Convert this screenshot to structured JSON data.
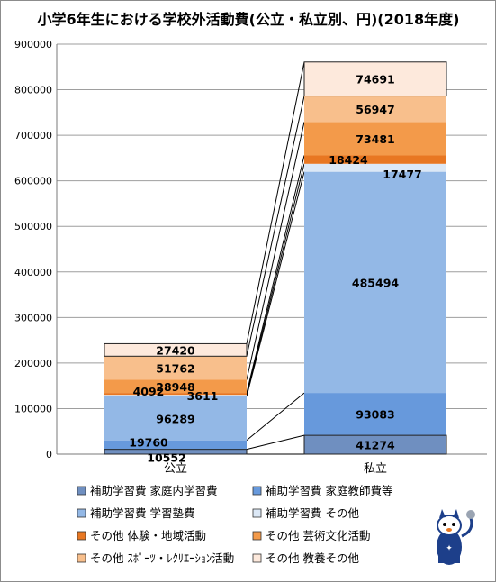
{
  "chart_data": {
    "type": "bar",
    "stacked": true,
    "title": "小学6年生における学校外活動費(公立・私立別、円)(2018年度)",
    "categories": [
      "公立",
      "私立"
    ],
    "ylim": [
      0,
      900000
    ],
    "yticks": [
      "0",
      "100000",
      "200000",
      "300000",
      "400000",
      "500000",
      "600000",
      "700000",
      "800000",
      "900000"
    ],
    "grid": true,
    "legend_position": "bottom",
    "series": [
      {
        "name": "補助学習費 家庭内学習費",
        "values": [
          10552,
          41274
        ],
        "labels": [
          "10552",
          "41274"
        ],
        "color": "#6f8fc0"
      },
      {
        "name": "補助学習費 家庭教師費等",
        "values": [
          19760,
          93083
        ],
        "labels": [
          "19760",
          "93083"
        ],
        "color": "#6799dc"
      },
      {
        "name": "補助学習費 学習塾費",
        "values": [
          96289,
          485494
        ],
        "labels": [
          "96289",
          "485494"
        ],
        "color": "#93b8e6"
      },
      {
        "name": "補助学習費 その他",
        "values": [
          3611,
          17477
        ],
        "labels": [
          "3611",
          "17477"
        ],
        "color": "#dce8f6"
      },
      {
        "name": "その他 体験・地域活動",
        "values": [
          4092,
          18424
        ],
        "labels": [
          "4092",
          "18424"
        ],
        "color": "#e87722"
      },
      {
        "name": "その他 芸術文化活動",
        "values": [
          28948,
          73481
        ],
        "labels": [
          "28948",
          "73481"
        ],
        "color": "#f39a4a"
      },
      {
        "name": "その他 ｽﾎﾟｰﾂ・ﾚｸﾘｴｰｼｮﾝ活動",
        "values": [
          51762,
          56947
        ],
        "labels": [
          "51762",
          "56947"
        ],
        "color": "#f8bf8c"
      },
      {
        "name": "その他 教養その他",
        "values": [
          27420,
          74691
        ],
        "labels": [
          "27420",
          "74691"
        ],
        "color": "#fde9dc"
      }
    ]
  },
  "logo": {
    "icon": "cat-mascot-icon"
  }
}
